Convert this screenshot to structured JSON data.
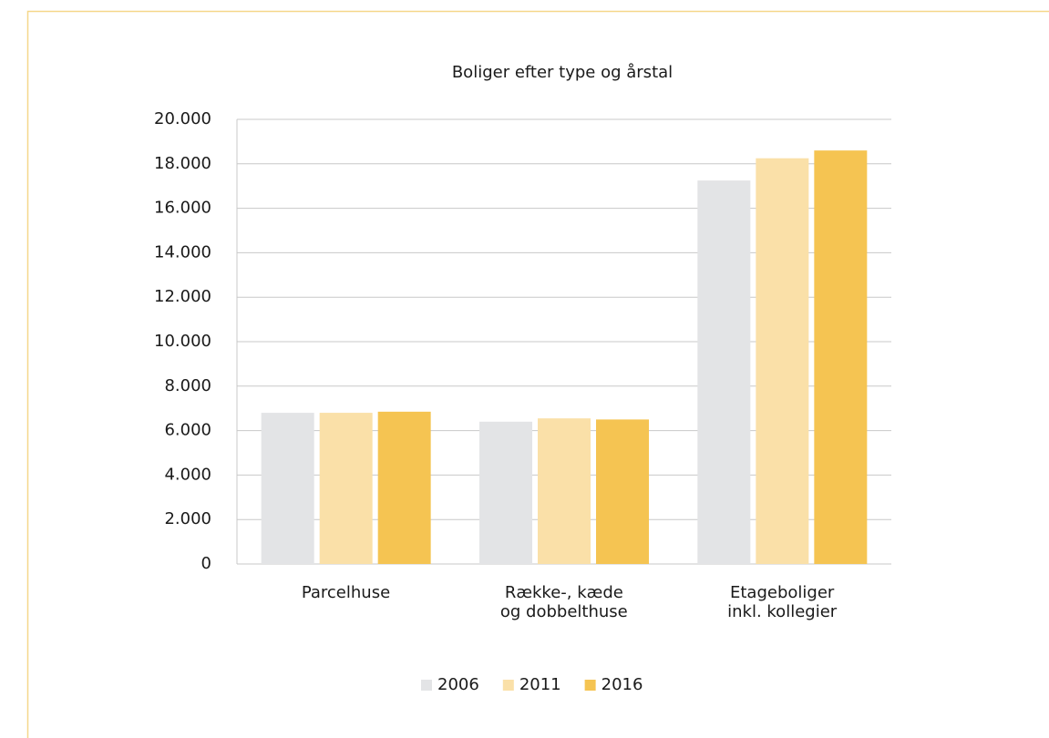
{
  "chart_data": {
    "type": "bar",
    "title": "Boliger efter type og årstal",
    "categories": [
      "Parcelhuse",
      "Række-, kæde\nog dobbelthuse",
      "Etageboliger\ninkl. kollegier"
    ],
    "series": [
      {
        "name": "2006",
        "color": "#e3e4e6",
        "values": [
          6800,
          6400,
          17250
        ]
      },
      {
        "name": "2011",
        "color": "#fae0a8",
        "values": [
          6800,
          6550,
          18250
        ]
      },
      {
        "name": "2016",
        "color": "#f5c452",
        "values": [
          6850,
          6500,
          18600
        ]
      }
    ],
    "ylim": [
      0,
      20000
    ],
    "yticks": [
      0,
      {
        "value": 2000,
        "label": "2.000"
      },
      {
        "value": 4000,
        "label": "4.000"
      },
      {
        "value": 6000,
        "label": "6.000"
      },
      {
        "value": 8000,
        "label": "8.000"
      },
      {
        "value": 10000,
        "label": "10.000"
      },
      {
        "value": 12000,
        "label": "12.000"
      },
      {
        "value": 14000,
        "label": "14.000"
      },
      {
        "value": 16000,
        "label": "16.000"
      },
      {
        "value": 18000,
        "label": "18.000"
      },
      {
        "value": 20000,
        "label": "20.000"
      }
    ],
    "grid": true,
    "legend": "bottom"
  }
}
